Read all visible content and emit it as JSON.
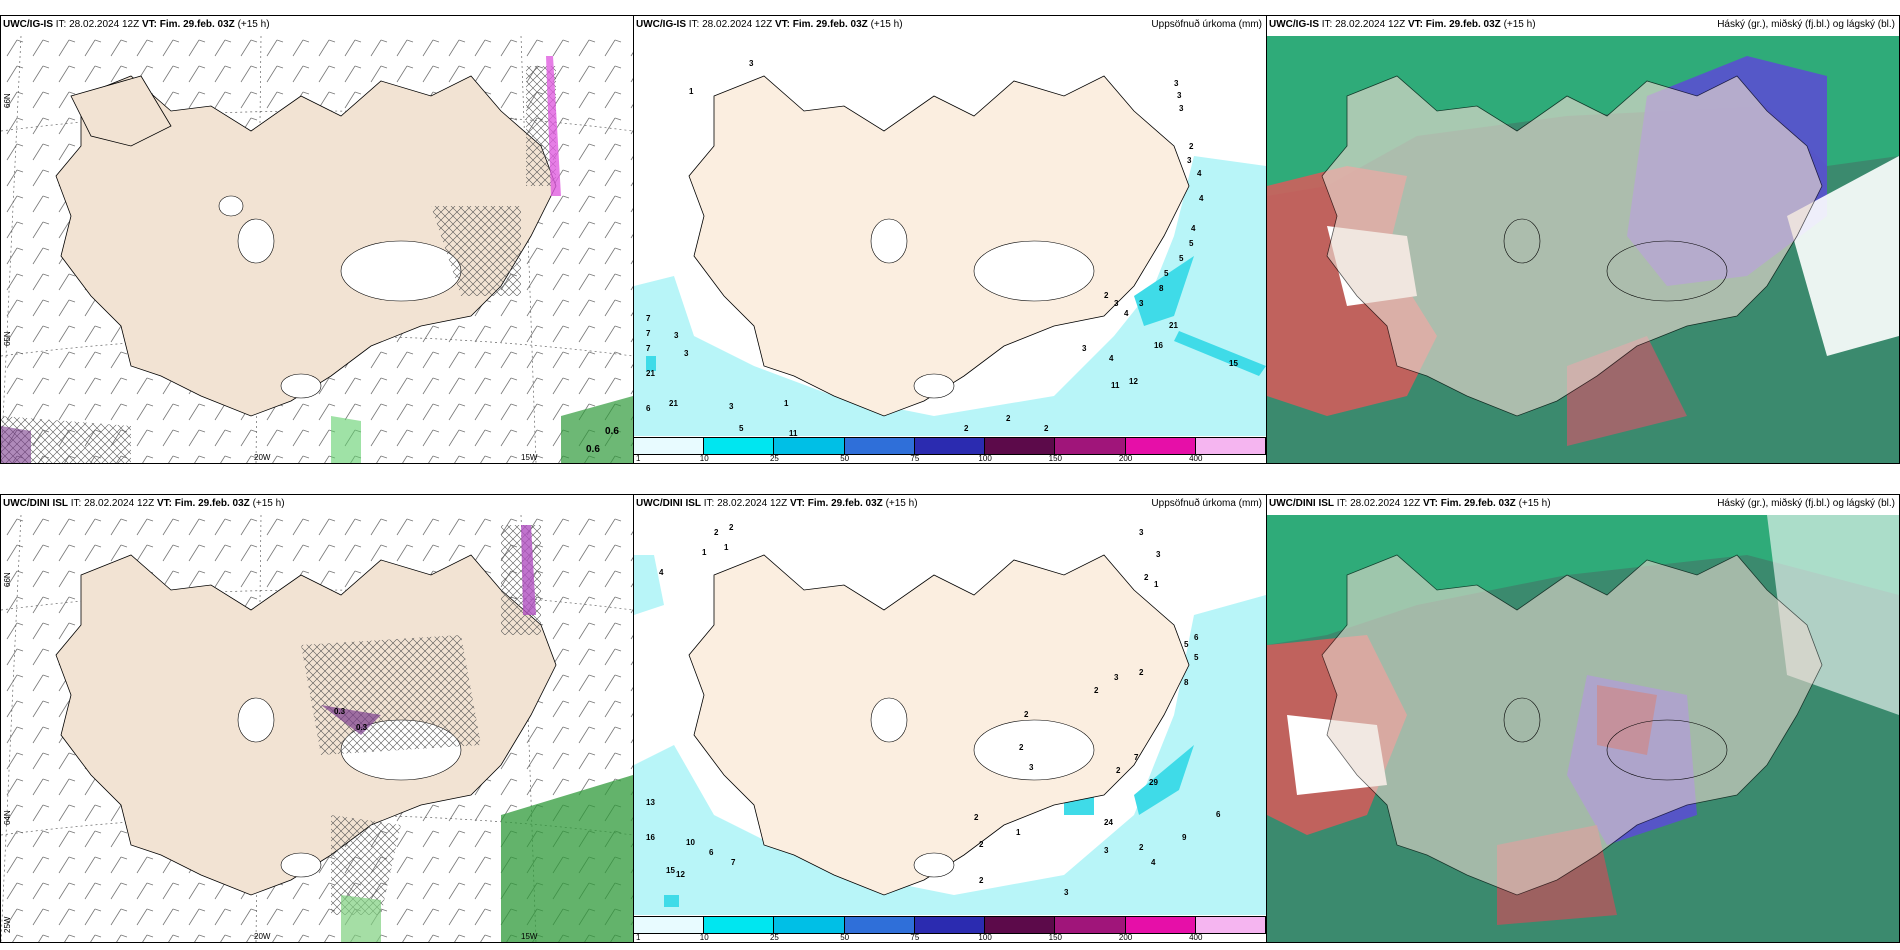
{
  "panels": {
    "p1": {
      "model": "UWC/IG-IS",
      "it": "28.02.2024 12Z",
      "vt_label": "VT:",
      "vt": "Fim. 29.feb. 03Z",
      "lead": "(+15 h)"
    },
    "p2": {
      "model": "UWC/IG-IS",
      "it": "28.02.2024 12Z",
      "vt_label": "VT:",
      "vt": "Fim. 29.feb. 03Z",
      "lead": "(+15 h)",
      "right": "Uppsöfnuð úrkoma (mm)"
    },
    "p3": {
      "model": "UWC/IG-IS",
      "it": "28.02.2024 12Z",
      "vt_label": "VT:",
      "vt": "Fim. 29.feb. 03Z",
      "lead": "(+15 h)",
      "right": "Háský (gr.), miðský (fj.bl.) og lágský (bl.)"
    },
    "p4": {
      "model": "UWC/DINI ISL",
      "it": "28.02.2024 12Z",
      "vt_label": "VT:",
      "vt": "Fim. 29.feb. 03Z",
      "lead": "(+15 h)"
    },
    "p5": {
      "model": "UWC/DINI ISL",
      "it": "28.02.2024 12Z",
      "vt_label": "VT:",
      "vt": "Fim. 29.feb. 03Z",
      "lead": "(+15 h)",
      "right": "Uppsöfnuð úrkoma (mm)"
    },
    "p6": {
      "model": "UWC/DINI ISL",
      "it": "28.02.2024 12Z",
      "vt_label": "VT:",
      "vt": "Fim. 29.feb. 03Z",
      "lead": "(+15 h)",
      "right": "Háský (gr.), miðský (fj.bl.) og lágský (bl.)"
    }
  },
  "axis": {
    "lon_20w": "20W",
    "lon_15w": "15W",
    "lat_66n": "66N",
    "lat_65n": "65N",
    "lat_64n": "64N",
    "lon_25w": "25W"
  },
  "wind_values": {
    "p1_a": "0.6",
    "p1_b": "0.6",
    "p4_a": "0.3",
    "p4_b": "0.3"
  },
  "colorbar": {
    "labels": [
      "1",
      "10",
      "25",
      "50",
      "75",
      "100",
      "150",
      "200",
      "400"
    ],
    "colors": [
      "#e8fbff",
      "#00e6f0",
      "#00bfe6",
      "#2f6fd9",
      "#2b2bb0",
      "#5c0a4a",
      "#a0157a",
      "#e60fa8",
      "#f5b5f0"
    ]
  },
  "precip_values": {
    "p2": [
      "1",
      "3",
      "3",
      "3",
      "3",
      "2",
      "3",
      "4",
      "4",
      "4",
      "5",
      "5",
      "5",
      "8",
      "2",
      "3",
      "4",
      "3",
      "21",
      "16",
      "15",
      "12",
      "11",
      "4",
      "3",
      "2",
      "7",
      "7",
      "3",
      "7",
      "3",
      "21",
      "21",
      "6",
      "3",
      "5",
      "1",
      "11",
      "2",
      "2"
    ],
    "p5": [
      "2",
      "2",
      "1",
      "1",
      "4",
      "3",
      "3",
      "2",
      "1",
      "5",
      "6",
      "5",
      "8",
      "2",
      "3",
      "2",
      "2",
      "7",
      "2",
      "29",
      "24",
      "2",
      "3",
      "6",
      "9",
      "2",
      "4",
      "3",
      "13",
      "16",
      "10",
      "6",
      "7",
      "15",
      "12",
      "2",
      "1",
      "2",
      "3",
      "2"
    ]
  },
  "colors": {
    "land": "#f2e3d3",
    "sea": "#ffffff",
    "precip_light": "#b8f5f8",
    "precip_mid": "#3fdbe8"
  }
}
